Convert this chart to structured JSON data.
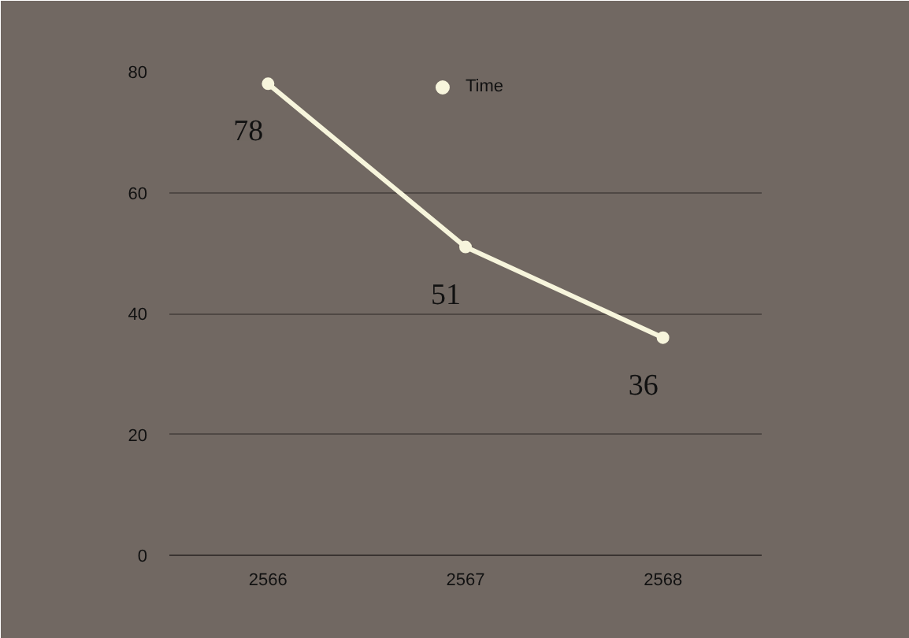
{
  "chart_data": {
    "type": "line",
    "categories": [
      "2566",
      "2567",
      "2568"
    ],
    "series": [
      {
        "name": "Time",
        "color": "#f7f5dc",
        "values": [
          78,
          51,
          36
        ]
      }
    ],
    "ylim": [
      0,
      80
    ],
    "yticks": [
      0,
      20,
      40,
      60,
      80
    ],
    "grid": "y",
    "legend": "top",
    "marker": "circle",
    "data_labels": true
  }
}
